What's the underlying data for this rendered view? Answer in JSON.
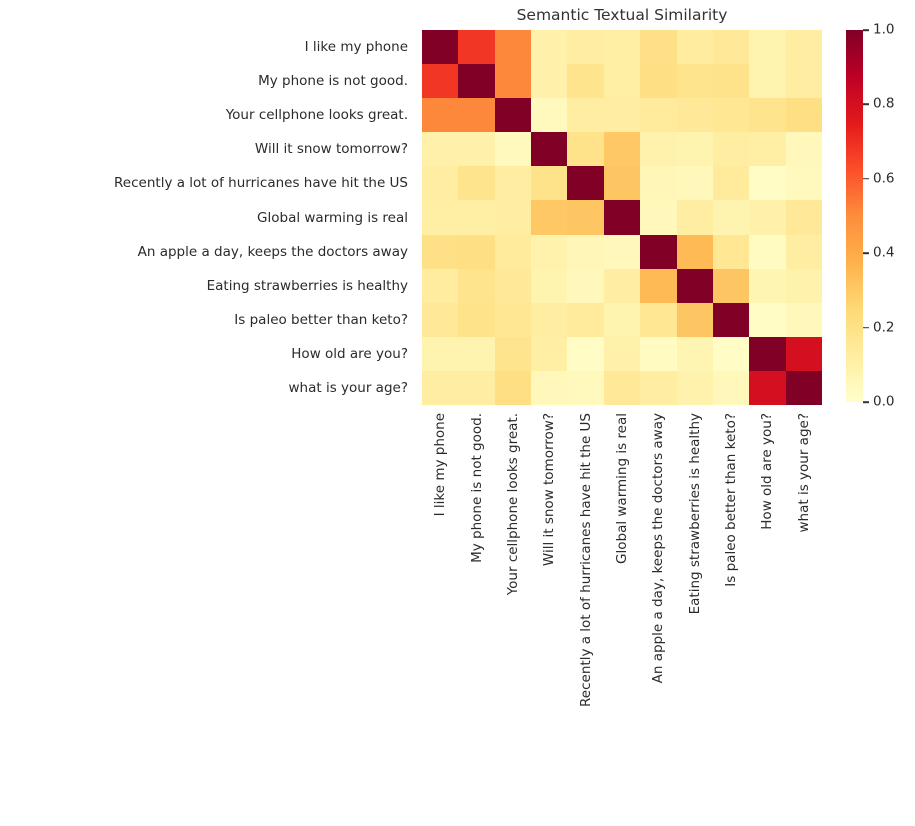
{
  "title": "Semantic Textual Similarity",
  "chart_data": {
    "type": "heatmap",
    "labels": [
      "I like my phone",
      "My phone is not good.",
      "Your cellphone looks great.",
      "Will it snow tomorrow?",
      "Recently a lot of hurricanes have hit the US",
      "Global warming is real",
      "An apple a day, keeps the doctors away",
      "Eating strawberries is healthy",
      "Is paleo better than keto?",
      "How old are you?",
      "what is your age?"
    ],
    "matrix": [
      [
        1.0,
        0.68,
        0.51,
        0.1,
        0.12,
        0.11,
        0.2,
        0.13,
        0.15,
        0.08,
        0.12
      ],
      [
        0.68,
        1.0,
        0.51,
        0.1,
        0.18,
        0.11,
        0.21,
        0.18,
        0.19,
        0.08,
        0.12
      ],
      [
        0.51,
        0.51,
        1.0,
        0.04,
        0.12,
        0.12,
        0.14,
        0.15,
        0.16,
        0.18,
        0.21
      ],
      [
        0.1,
        0.1,
        0.04,
        1.0,
        0.19,
        0.3,
        0.09,
        0.08,
        0.12,
        0.11,
        0.05
      ],
      [
        0.12,
        0.18,
        0.12,
        0.19,
        1.0,
        0.31,
        0.06,
        0.05,
        0.14,
        0.02,
        0.04
      ],
      [
        0.11,
        0.11,
        0.12,
        0.3,
        0.31,
        1.0,
        0.05,
        0.12,
        0.08,
        0.1,
        0.15
      ],
      [
        0.2,
        0.21,
        0.14,
        0.09,
        0.06,
        0.05,
        1.0,
        0.35,
        0.16,
        0.03,
        0.12
      ],
      [
        0.13,
        0.18,
        0.15,
        0.08,
        0.05,
        0.12,
        0.35,
        1.0,
        0.31,
        0.07,
        0.09
      ],
      [
        0.15,
        0.19,
        0.16,
        0.12,
        0.14,
        0.08,
        0.16,
        0.31,
        1.0,
        0.02,
        0.05
      ],
      [
        0.08,
        0.08,
        0.18,
        0.11,
        0.02,
        0.1,
        0.03,
        0.07,
        0.02,
        1.0,
        0.8
      ],
      [
        0.12,
        0.12,
        0.21,
        0.05,
        0.04,
        0.15,
        0.12,
        0.09,
        0.05,
        0.8,
        1.0
      ]
    ],
    "colormap": {
      "name": "YlOrRd",
      "anchors": [
        {
          "value": 0.0,
          "color": "#ffffcc"
        },
        {
          "value": 0.125,
          "color": "#ffeda0"
        },
        {
          "value": 0.25,
          "color": "#fed976"
        },
        {
          "value": 0.375,
          "color": "#feb24c"
        },
        {
          "value": 0.5,
          "color": "#fd8d3c"
        },
        {
          "value": 0.625,
          "color": "#fc4e2a"
        },
        {
          "value": 0.75,
          "color": "#e31a1c"
        },
        {
          "value": 0.875,
          "color": "#bd0026"
        },
        {
          "value": 1.0,
          "color": "#800026"
        }
      ]
    },
    "colorbar": {
      "min": 0.0,
      "max": 1.0,
      "ticks": [
        {
          "label": "1.0",
          "value": 1.0
        },
        {
          "label": "0.8",
          "value": 0.8
        },
        {
          "label": "0.6",
          "value": 0.6
        },
        {
          "label": "0.4",
          "value": 0.4
        },
        {
          "label": "0.2",
          "value": 0.2
        },
        {
          "label": "0.0",
          "value": 0.0
        }
      ],
      "position": "right"
    },
    "grid": false,
    "xlabel": "",
    "ylabel": ""
  }
}
